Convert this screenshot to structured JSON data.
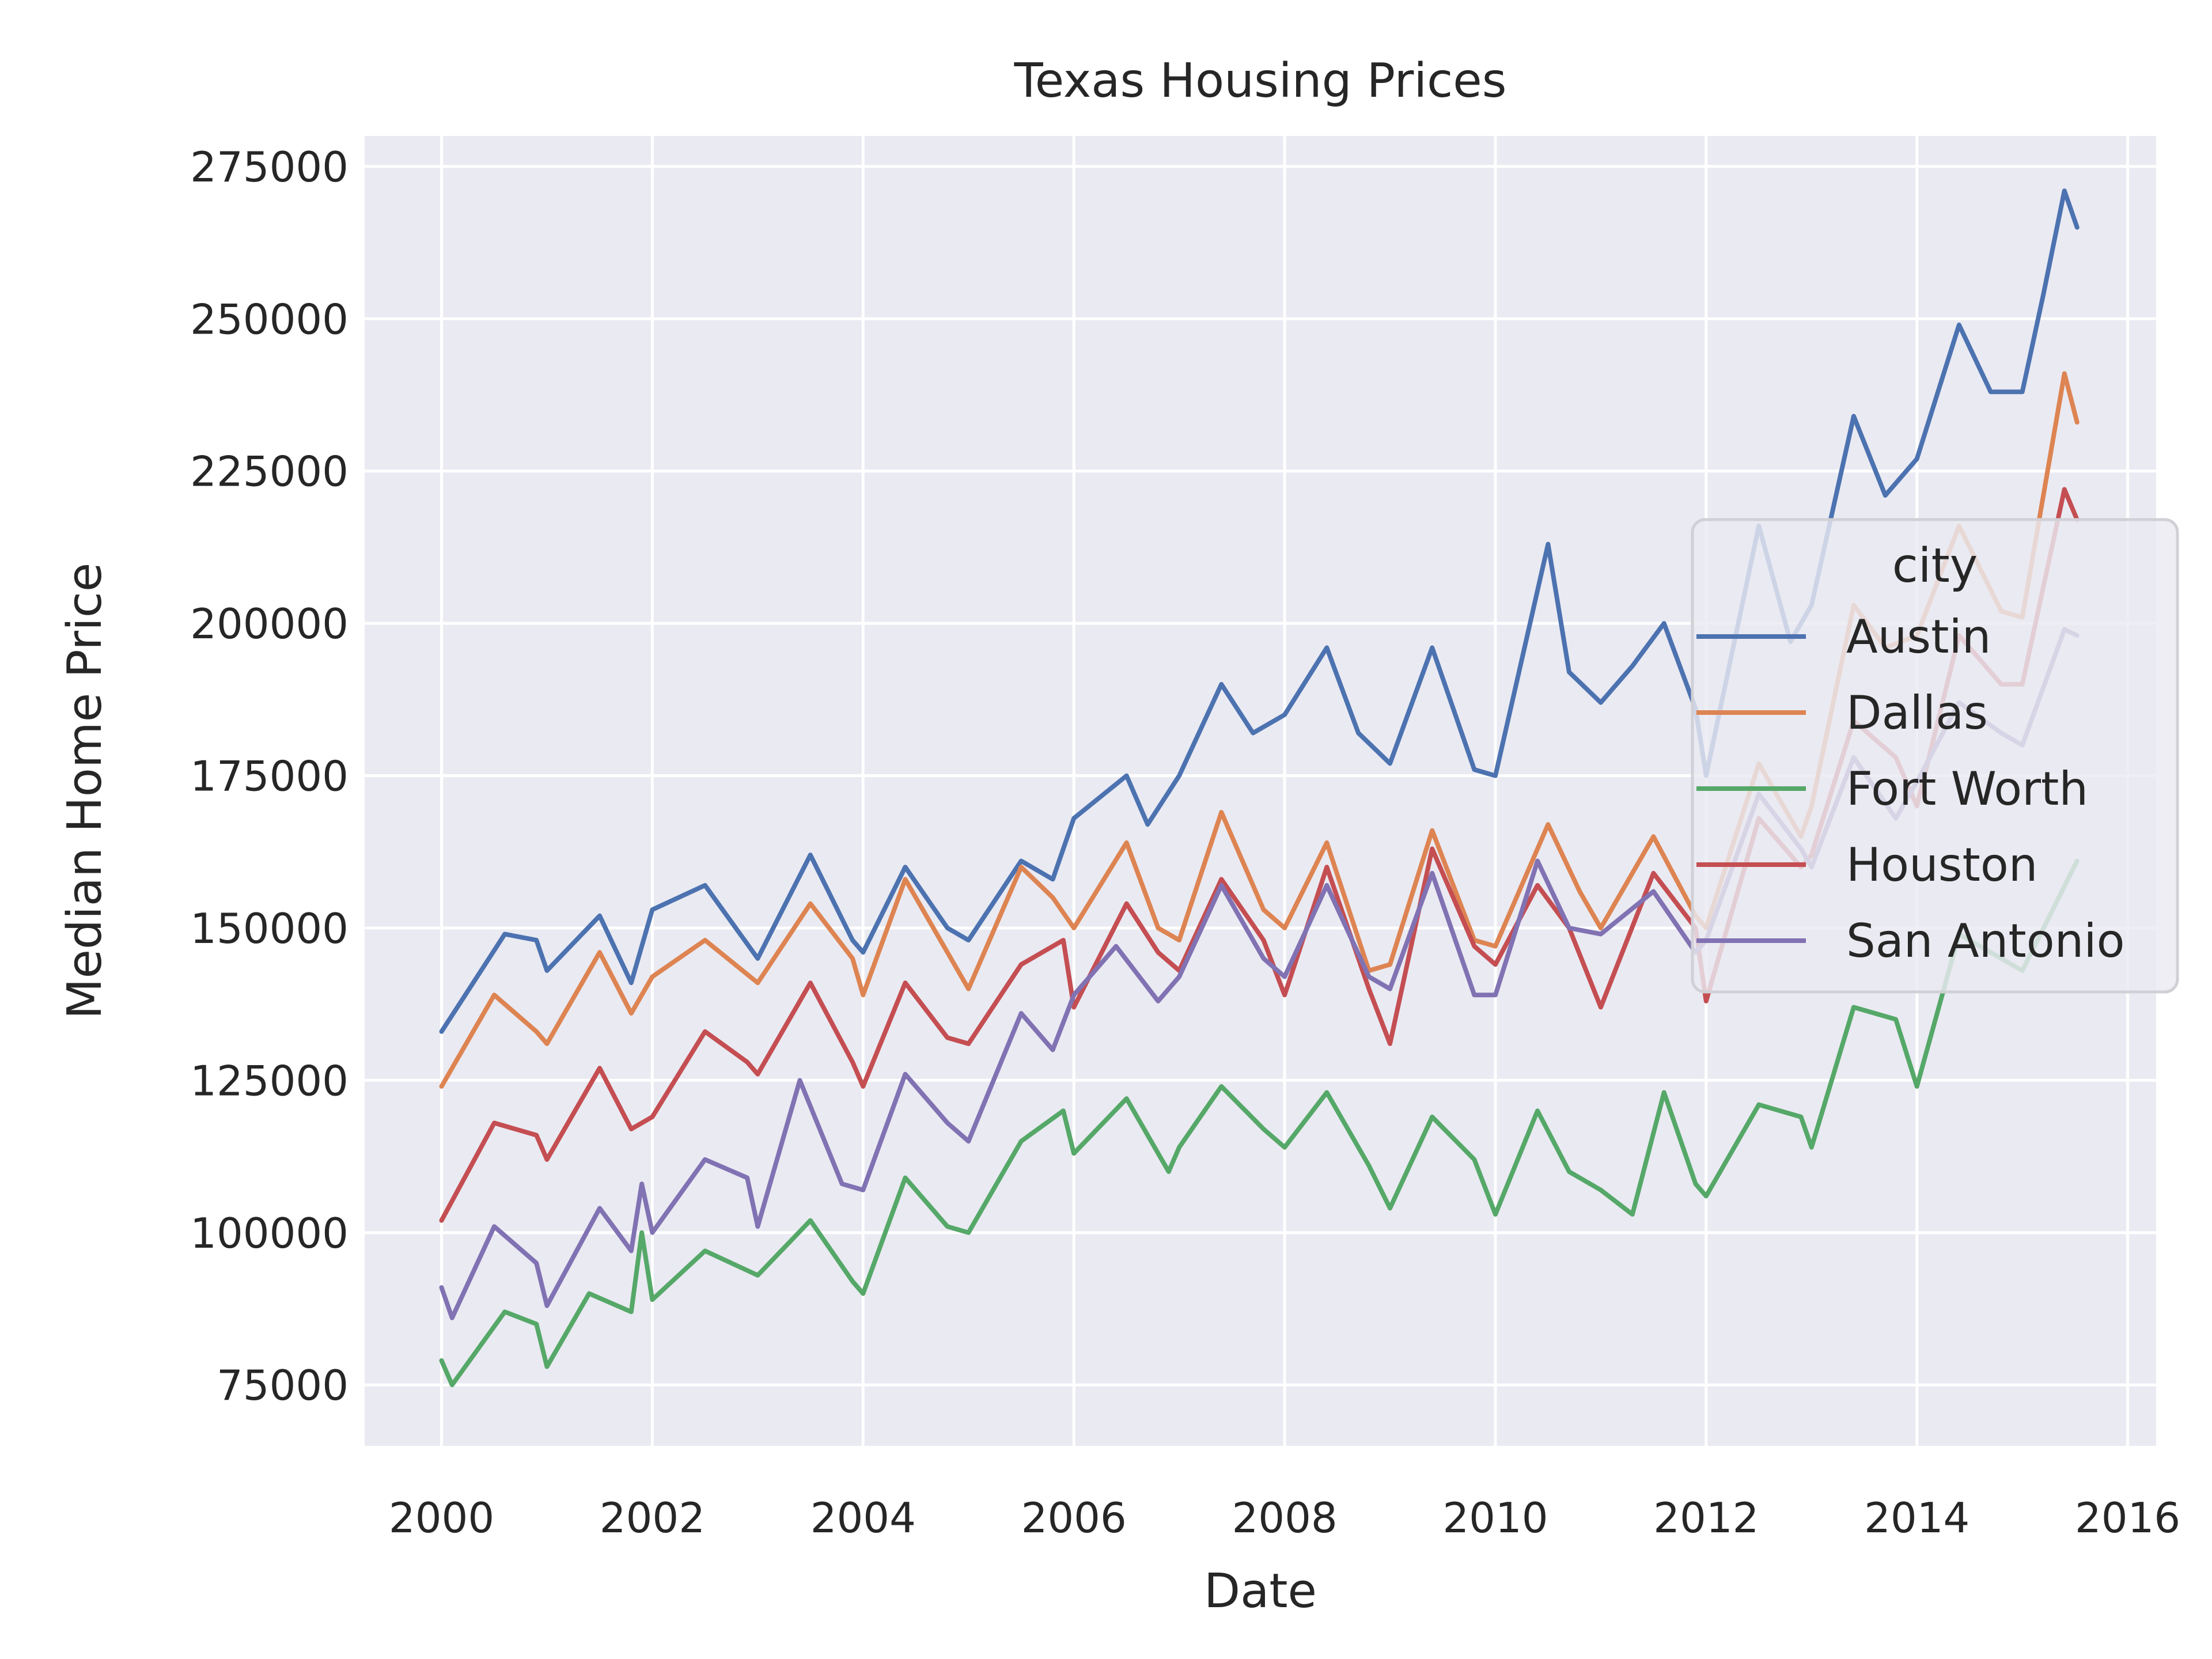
{
  "chart_data": {
    "type": "line",
    "title": "Texas Housing Prices",
    "xlabel": "Date",
    "ylabel": "Median Home Price",
    "xlim": [
      1999.27,
      2016.27
    ],
    "ylim": [
      65000,
      280000
    ],
    "x_ticks": [
      2000,
      2002,
      2004,
      2006,
      2008,
      2010,
      2012,
      2014,
      2016
    ],
    "x_tick_labels": [
      "2000",
      "2002",
      "2004",
      "2006",
      "2008",
      "2010",
      "2012",
      "2014",
      "2016"
    ],
    "y_ticks": [
      75000,
      100000,
      125000,
      150000,
      175000,
      200000,
      225000,
      250000,
      275000
    ],
    "y_tick_labels": [
      "75000",
      "100000",
      "125000",
      "150000",
      "175000",
      "200000",
      "225000",
      "250000",
      "275000"
    ],
    "grid": true,
    "legend": {
      "title": "city",
      "position": "center-right"
    },
    "series": [
      {
        "name": "Austin",
        "color": "#4c72b0",
        "points": [
          [
            2000.0,
            133000
          ],
          [
            2000.6,
            149000
          ],
          [
            2000.9,
            148000
          ],
          [
            2001.0,
            143000
          ],
          [
            2001.5,
            152000
          ],
          [
            2001.8,
            141000
          ],
          [
            2002.0,
            153000
          ],
          [
            2002.5,
            157000
          ],
          [
            2003.0,
            145000
          ],
          [
            2003.5,
            162000
          ],
          [
            2003.9,
            148000
          ],
          [
            2004.0,
            146000
          ],
          [
            2004.4,
            160000
          ],
          [
            2004.8,
            150000
          ],
          [
            2005.0,
            148000
          ],
          [
            2005.5,
            161000
          ],
          [
            2005.8,
            158000
          ],
          [
            2006.0,
            168000
          ],
          [
            2006.5,
            175000
          ],
          [
            2006.7,
            167000
          ],
          [
            2007.0,
            175000
          ],
          [
            2007.4,
            190000
          ],
          [
            2007.7,
            182000
          ],
          [
            2008.0,
            185000
          ],
          [
            2008.4,
            196000
          ],
          [
            2008.7,
            182000
          ],
          [
            2009.0,
            177000
          ],
          [
            2009.4,
            196000
          ],
          [
            2009.8,
            176000
          ],
          [
            2010.0,
            175000
          ],
          [
            2010.5,
            213000
          ],
          [
            2010.7,
            192000
          ],
          [
            2011.0,
            187000
          ],
          [
            2011.3,
            193000
          ],
          [
            2011.6,
            200000
          ],
          [
            2011.9,
            186000
          ],
          [
            2012.0,
            175000
          ],
          [
            2012.5,
            216000
          ],
          [
            2012.8,
            197000
          ],
          [
            2013.0,
            203000
          ],
          [
            2013.4,
            234000
          ],
          [
            2013.7,
            221000
          ],
          [
            2014.0,
            227000
          ],
          [
            2014.4,
            249000
          ],
          [
            2014.7,
            238000
          ],
          [
            2015.0,
            238000
          ],
          [
            2015.2,
            254000
          ],
          [
            2015.4,
            271000
          ],
          [
            2015.52,
            265000
          ]
        ]
      },
      {
        "name": "Dallas",
        "color": "#dd8452",
        "points": [
          [
            2000.0,
            124000
          ],
          [
            2000.5,
            139000
          ],
          [
            2000.9,
            133000
          ],
          [
            2001.0,
            131000
          ],
          [
            2001.5,
            146000
          ],
          [
            2001.8,
            136000
          ],
          [
            2002.0,
            142000
          ],
          [
            2002.5,
            148000
          ],
          [
            2003.0,
            141000
          ],
          [
            2003.5,
            154000
          ],
          [
            2003.9,
            145000
          ],
          [
            2004.0,
            139000
          ],
          [
            2004.4,
            158000
          ],
          [
            2004.8,
            146000
          ],
          [
            2005.0,
            140000
          ],
          [
            2005.5,
            160000
          ],
          [
            2005.8,
            155000
          ],
          [
            2006.0,
            150000
          ],
          [
            2006.5,
            164000
          ],
          [
            2006.8,
            150000
          ],
          [
            2007.0,
            148000
          ],
          [
            2007.4,
            169000
          ],
          [
            2007.8,
            153000
          ],
          [
            2008.0,
            150000
          ],
          [
            2008.4,
            164000
          ],
          [
            2008.8,
            143000
          ],
          [
            2009.0,
            144000
          ],
          [
            2009.4,
            166000
          ],
          [
            2009.8,
            148000
          ],
          [
            2010.0,
            147000
          ],
          [
            2010.5,
            167000
          ],
          [
            2010.8,
            156000
          ],
          [
            2011.0,
            150000
          ],
          [
            2011.5,
            165000
          ],
          [
            2011.9,
            152000
          ],
          [
            2012.0,
            150000
          ],
          [
            2012.5,
            177000
          ],
          [
            2012.9,
            165000
          ],
          [
            2013.0,
            170000
          ],
          [
            2013.4,
            203000
          ],
          [
            2013.7,
            196000
          ],
          [
            2014.0,
            198000
          ],
          [
            2014.4,
            216000
          ],
          [
            2014.8,
            202000
          ],
          [
            2015.0,
            201000
          ],
          [
            2015.4,
            241000
          ],
          [
            2015.52,
            233000
          ]
        ]
      },
      {
        "name": "Fort Worth",
        "color": "#55a868",
        "points": [
          [
            2000.0,
            79000
          ],
          [
            2000.1,
            75000
          ],
          [
            2000.6,
            87000
          ],
          [
            2000.9,
            85000
          ],
          [
            2001.0,
            78000
          ],
          [
            2001.4,
            90000
          ],
          [
            2001.8,
            87000
          ],
          [
            2001.9,
            100000
          ],
          [
            2002.0,
            89000
          ],
          [
            2002.5,
            97000
          ],
          [
            2003.0,
            93000
          ],
          [
            2003.5,
            102000
          ],
          [
            2003.9,
            92000
          ],
          [
            2004.0,
            90000
          ],
          [
            2004.4,
            109000
          ],
          [
            2004.8,
            101000
          ],
          [
            2005.0,
            100000
          ],
          [
            2005.5,
            115000
          ],
          [
            2005.9,
            120000
          ],
          [
            2006.0,
            113000
          ],
          [
            2006.5,
            122000
          ],
          [
            2006.9,
            110000
          ],
          [
            2007.0,
            114000
          ],
          [
            2007.4,
            124000
          ],
          [
            2007.8,
            117000
          ],
          [
            2008.0,
            114000
          ],
          [
            2008.4,
            123000
          ],
          [
            2008.8,
            111000
          ],
          [
            2009.0,
            104000
          ],
          [
            2009.4,
            119000
          ],
          [
            2009.8,
            112000
          ],
          [
            2010.0,
            103000
          ],
          [
            2010.4,
            120000
          ],
          [
            2010.7,
            110000
          ],
          [
            2011.0,
            107000
          ],
          [
            2011.3,
            103000
          ],
          [
            2011.6,
            123000
          ],
          [
            2011.9,
            108000
          ],
          [
            2012.0,
            106000
          ],
          [
            2012.5,
            121000
          ],
          [
            2012.9,
            119000
          ],
          [
            2013.0,
            114000
          ],
          [
            2013.4,
            137000
          ],
          [
            2013.8,
            135000
          ],
          [
            2014.0,
            124000
          ],
          [
            2014.4,
            149000
          ],
          [
            2014.8,
            145000
          ],
          [
            2015.0,
            143000
          ],
          [
            2015.52,
            161000
          ]
        ]
      },
      {
        "name": "Houston",
        "color": "#c44e52",
        "points": [
          [
            2000.0,
            102000
          ],
          [
            2000.5,
            118000
          ],
          [
            2000.9,
            116000
          ],
          [
            2001.0,
            112000
          ],
          [
            2001.5,
            127000
          ],
          [
            2001.8,
            117000
          ],
          [
            2002.0,
            119000
          ],
          [
            2002.5,
            133000
          ],
          [
            2002.9,
            128000
          ],
          [
            2003.0,
            126000
          ],
          [
            2003.5,
            141000
          ],
          [
            2003.9,
            128000
          ],
          [
            2004.0,
            124000
          ],
          [
            2004.4,
            141000
          ],
          [
            2004.8,
            132000
          ],
          [
            2005.0,
            131000
          ],
          [
            2005.5,
            144000
          ],
          [
            2005.9,
            148000
          ],
          [
            2006.0,
            137000
          ],
          [
            2006.5,
            154000
          ],
          [
            2006.8,
            146000
          ],
          [
            2007.0,
            143000
          ],
          [
            2007.4,
            158000
          ],
          [
            2007.8,
            148000
          ],
          [
            2008.0,
            139000
          ],
          [
            2008.4,
            160000
          ],
          [
            2008.8,
            140000
          ],
          [
            2009.0,
            131000
          ],
          [
            2009.4,
            163000
          ],
          [
            2009.8,
            147000
          ],
          [
            2010.0,
            144000
          ],
          [
            2010.4,
            157000
          ],
          [
            2010.7,
            150000
          ],
          [
            2011.0,
            137000
          ],
          [
            2011.5,
            159000
          ],
          [
            2011.9,
            150000
          ],
          [
            2012.0,
            138000
          ],
          [
            2012.5,
            168000
          ],
          [
            2012.9,
            160000
          ],
          [
            2013.0,
            162000
          ],
          [
            2013.4,
            184000
          ],
          [
            2013.8,
            178000
          ],
          [
            2014.0,
            170000
          ],
          [
            2014.4,
            198000
          ],
          [
            2014.8,
            190000
          ],
          [
            2015.0,
            190000
          ],
          [
            2015.4,
            222000
          ],
          [
            2015.52,
            217000
          ]
        ]
      },
      {
        "name": "San Antonio",
        "color": "#8172b3",
        "points": [
          [
            2000.0,
            91000
          ],
          [
            2000.1,
            86000
          ],
          [
            2000.5,
            101000
          ],
          [
            2000.9,
            95000
          ],
          [
            2001.0,
            88000
          ],
          [
            2001.5,
            104000
          ],
          [
            2001.8,
            97000
          ],
          [
            2001.9,
            108000
          ],
          [
            2002.0,
            100000
          ],
          [
            2002.5,
            112000
          ],
          [
            2002.9,
            109000
          ],
          [
            2003.0,
            101000
          ],
          [
            2003.4,
            125000
          ],
          [
            2003.8,
            108000
          ],
          [
            2004.0,
            107000
          ],
          [
            2004.4,
            126000
          ],
          [
            2004.8,
            118000
          ],
          [
            2005.0,
            115000
          ],
          [
            2005.5,
            136000
          ],
          [
            2005.8,
            130000
          ],
          [
            2006.0,
            139000
          ],
          [
            2006.4,
            147000
          ],
          [
            2006.8,
            138000
          ],
          [
            2007.0,
            142000
          ],
          [
            2007.4,
            157000
          ],
          [
            2007.8,
            145000
          ],
          [
            2008.0,
            142000
          ],
          [
            2008.4,
            157000
          ],
          [
            2008.8,
            142000
          ],
          [
            2009.0,
            140000
          ],
          [
            2009.4,
            159000
          ],
          [
            2009.8,
            139000
          ],
          [
            2010.0,
            139000
          ],
          [
            2010.4,
            161000
          ],
          [
            2010.7,
            150000
          ],
          [
            2011.0,
            149000
          ],
          [
            2011.5,
            156000
          ],
          [
            2011.9,
            146000
          ],
          [
            2012.0,
            148000
          ],
          [
            2012.5,
            172000
          ],
          [
            2012.9,
            163000
          ],
          [
            2013.0,
            160000
          ],
          [
            2013.4,
            178000
          ],
          [
            2013.8,
            168000
          ],
          [
            2014.0,
            174000
          ],
          [
            2014.4,
            187000
          ],
          [
            2014.8,
            182000
          ],
          [
            2015.0,
            180000
          ],
          [
            2015.4,
            199000
          ],
          [
            2015.52,
            198000
          ]
        ]
      }
    ]
  }
}
